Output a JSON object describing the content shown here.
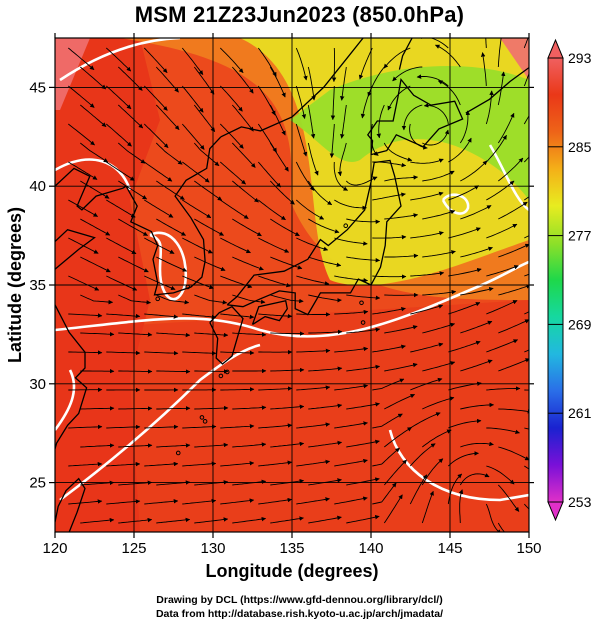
{
  "title": "MSM 21Z23Jun2023 (850.0hPa)",
  "x_axis": {
    "label": "Longitude (degrees)",
    "ticks": [
      "120",
      "125",
      "130",
      "135",
      "140",
      "145",
      "150"
    ],
    "range": [
      120,
      150
    ]
  },
  "y_axis": {
    "label": "Latitude  (degrees)",
    "ticks": [
      "25",
      "30",
      "35",
      "40",
      "45"
    ],
    "range": [
      22.5,
      47.5
    ]
  },
  "colorbar": {
    "ticks": [
      "293",
      "285",
      "277",
      "269",
      "261",
      "253"
    ],
    "range": [
      253,
      293
    ],
    "colors": [
      "#e030c8",
      "#7a10d8",
      "#1a22d0",
      "#2a6ee8",
      "#22b8e0",
      "#16d8a0",
      "#1ed84a",
      "#8ee028",
      "#e8ec20",
      "#f4b018",
      "#ee6418",
      "#ea3818",
      "#f06060"
    ]
  },
  "field_colors": {
    "warm": "#ec4a1c",
    "hot": "#e8341a",
    "orange": "#f07a1e",
    "yellow": "#e8dc22",
    "green": "#9ade2a",
    "pink": "#f07070"
  },
  "credits": [
    "Drawing by DCL (https://www.gfd-dennou.org/library/dcl/)",
    "Data from http://database.rish.kyoto-u.ac.jp/arch/jmadata/"
  ]
}
